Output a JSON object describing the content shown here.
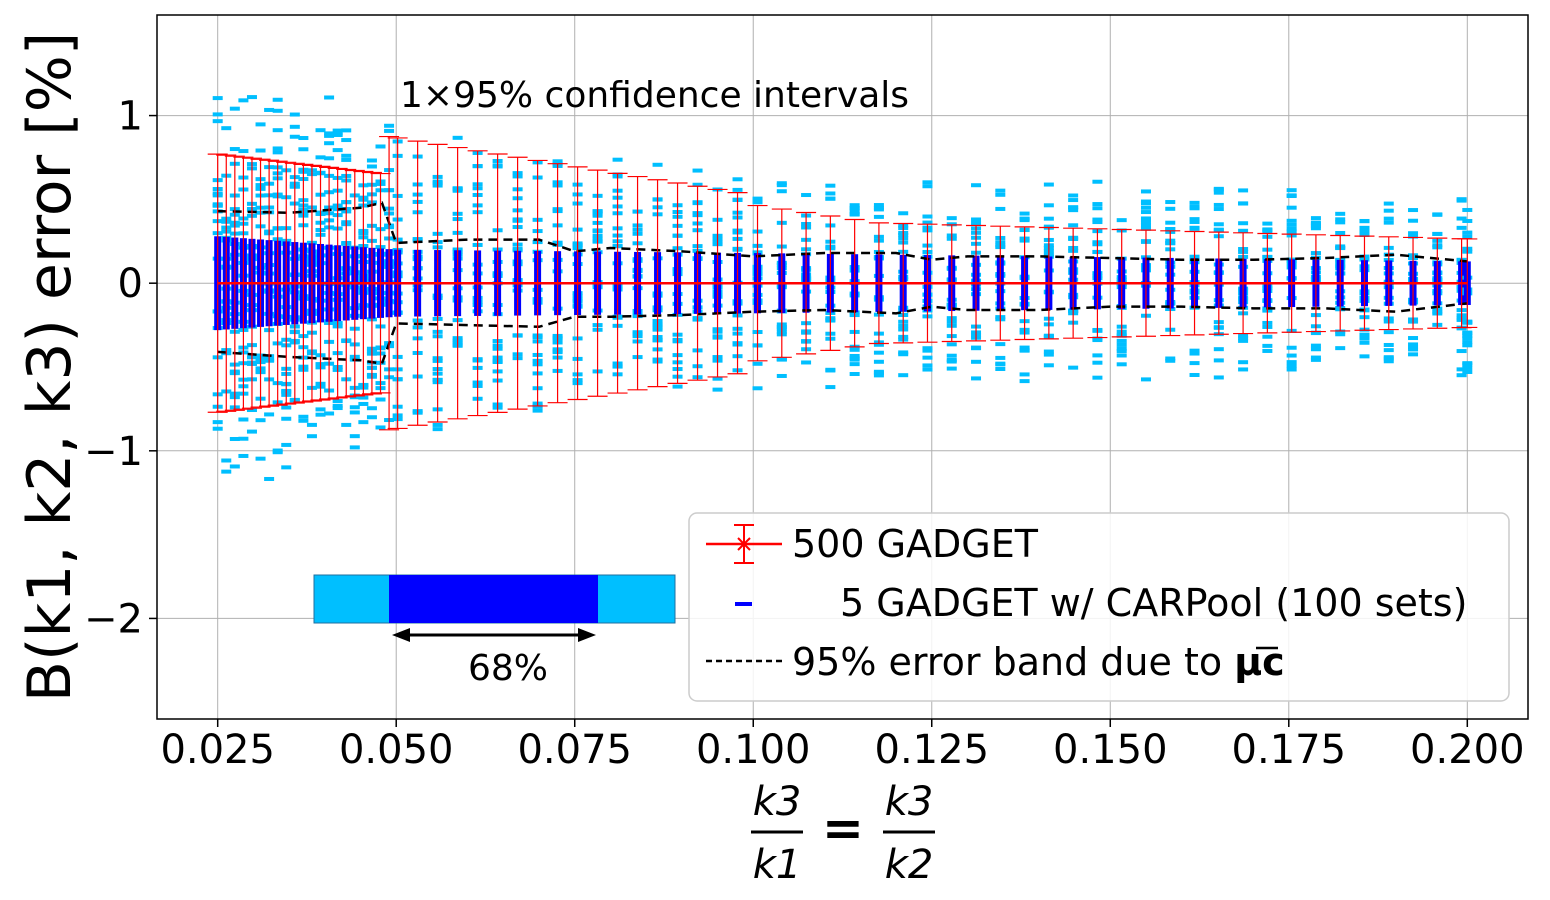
{
  "chart_data": {
    "type": "scatter",
    "title": "",
    "xlabel": "k3/k1 = k3/k2",
    "xlabel_parts": {
      "num1": "k3",
      "den1": "k1",
      "eq": "=",
      "num2": "k3",
      "den2": "k2"
    },
    "ylabel": "B(k1, k2, k3) error [%]",
    "xlim": [
      0.0165,
      0.2085
    ],
    "ylim": [
      -2.6,
      1.6
    ],
    "grid": true,
    "x_ticks": [
      0.025,
      0.05,
      0.075,
      0.1,
      0.125,
      0.15,
      0.175,
      0.2
    ],
    "x_tick_labels": [
      "0.025",
      "0.050",
      "0.075",
      "0.100",
      "0.125",
      "0.150",
      "0.175",
      "0.200"
    ],
    "y_ticks": [
      -2,
      -1,
      0,
      1
    ],
    "y_tick_labels": [
      "−2",
      "−1",
      "0",
      "1"
    ],
    "annotations": {
      "ci_text": "1×95% confidence intervals",
      "percent_68": "68%"
    },
    "legend": {
      "placement": "lower-right",
      "entries": [
        {
          "label": "500  GADGET",
          "color": "#ff0000",
          "marker": "errorbar-x"
        },
        {
          "label": "5  GADGET w/ CARPool (100 sets)",
          "color": "#0000ff",
          "marker": "dash"
        },
        {
          "label": "95%  error band due to ",
          "label_math": "μc",
          "color": "#000000",
          "marker": "dashed-line"
        }
      ]
    },
    "colors": {
      "gadget": "#ff0000",
      "carpool_inner": "#0000ff",
      "carpool_outer": "#00bfff",
      "band": "#000000",
      "grid": "#b0b0b0"
    },
    "series": [
      {
        "name": "500  GADGET",
        "x": [
          0.025,
          0.1175,
          0.2
        ],
        "values": [
          0,
          0,
          0
        ],
        "errors": [
          0.77,
          0.3,
          0.22
        ]
      },
      {
        "name": "95%  error band due to μc (upper)",
        "x": [
          0.025,
          0.035,
          0.045,
          0.048,
          0.05,
          0.06,
          0.07,
          0.075,
          0.08,
          0.09,
          0.1,
          0.11,
          0.12,
          0.125,
          0.13,
          0.14,
          0.15,
          0.16,
          0.17,
          0.18,
          0.19,
          0.2
        ],
        "values": [
          0.43,
          0.42,
          0.45,
          0.48,
          0.24,
          0.26,
          0.26,
          0.19,
          0.21,
          0.19,
          0.16,
          0.18,
          0.18,
          0.14,
          0.16,
          0.16,
          0.15,
          0.14,
          0.14,
          0.15,
          0.17,
          0.13
        ]
      },
      {
        "name": "95%  error band due to μc (lower)",
        "x": [
          0.025,
          0.035,
          0.045,
          0.048,
          0.05,
          0.06,
          0.07,
          0.075,
          0.08,
          0.09,
          0.1,
          0.11,
          0.12,
          0.125,
          0.13,
          0.14,
          0.15,
          0.16,
          0.17,
          0.18,
          0.19,
          0.2
        ],
        "values": [
          -0.41,
          -0.44,
          -0.46,
          -0.48,
          -0.24,
          -0.25,
          -0.26,
          -0.2,
          -0.2,
          -0.19,
          -0.17,
          -0.16,
          -0.18,
          -0.14,
          -0.16,
          -0.16,
          -0.14,
          -0.14,
          -0.15,
          -0.15,
          -0.17,
          -0.12
        ]
      },
      {
        "name": "5  GADGET w/ CARPool (100 sets)",
        "x_range": [
          0.025,
          0.2
        ],
        "inner_halfwidth_at_x": [
          [
            0.025,
            0.28
          ],
          [
            0.05,
            0.2
          ],
          [
            0.1,
            0.18
          ],
          [
            0.2,
            0.13
          ]
        ],
        "outer_extent_at_x": [
          [
            0.025,
            1.4
          ],
          [
            0.05,
            1.0
          ],
          [
            0.1,
            0.7
          ],
          [
            0.2,
            0.6
          ]
        ]
      }
    ]
  }
}
